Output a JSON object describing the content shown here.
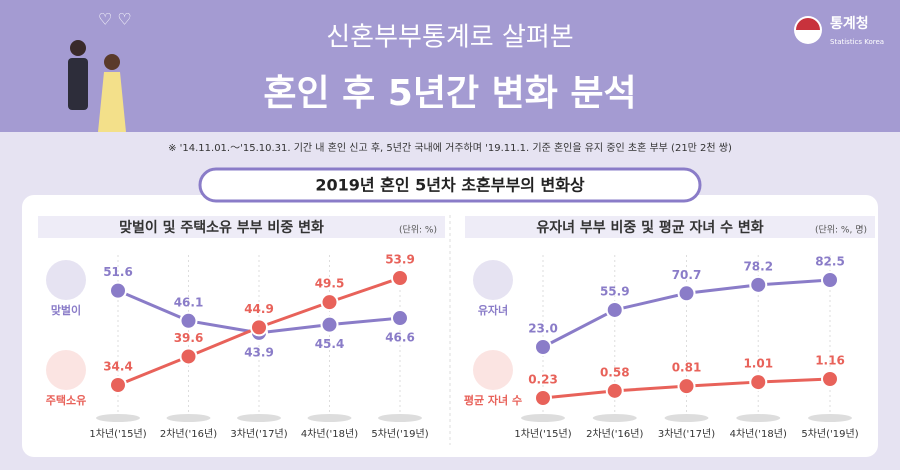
{
  "header": {
    "title": "신혼부부통계로 살펴본",
    "subtitle": "혼인 후 5년간 변화 분석",
    "logo": "통계청",
    "logo_en": "Statistics Korea",
    "note": "※ '14.11.01.～'15.10.31. 기간 내 혼인 신고 후, 5년간 국내에 거주하며 '19.11.1. 기준 혼인을 유지 중인 초혼 부부 (21만 2천 쌍)",
    "section": "2019년 혼인 5년차 초혼부부의 변화상"
  },
  "chart_data": [
    {
      "type": "line",
      "title": "맞벌이 및 주택소유 부부 비중 변화",
      "unit": "(단위: %)",
      "categories": [
        "1차년('15년)",
        "2차년('16년)",
        "3차년('17년)",
        "4차년('18년)",
        "5차년('19년)"
      ],
      "series": [
        {
          "name": "맞벌이",
          "color": "#8a7cc8",
          "values": [
            51.6,
            46.1,
            43.9,
            45.4,
            46.6
          ]
        },
        {
          "name": "주택소유",
          "color": "#e8625a",
          "values": [
            34.4,
            39.6,
            44.9,
            49.5,
            53.9
          ]
        }
      ]
    },
    {
      "type": "line",
      "title": "유자녀 부부 비중 및 평균 자녀 수 변화",
      "unit": "(단위: %, 명)",
      "categories": [
        "1차년('15년)",
        "2차년('16년)",
        "3차년('17년)",
        "4차년('18년)",
        "5차년('19년)"
      ],
      "series": [
        {
          "name": "유자녀",
          "color": "#8a7cc8",
          "values": [
            23.0,
            55.9,
            70.7,
            78.2,
            82.5
          ],
          "value_labels": [
            "23.0",
            "55.9",
            "70.7",
            "78.2",
            "82.5"
          ]
        },
        {
          "name": "평균 자녀 수",
          "color": "#e8625a",
          "values": [
            0.23,
            0.58,
            0.81,
            1.01,
            1.16
          ],
          "axis": "y2"
        }
      ]
    }
  ]
}
